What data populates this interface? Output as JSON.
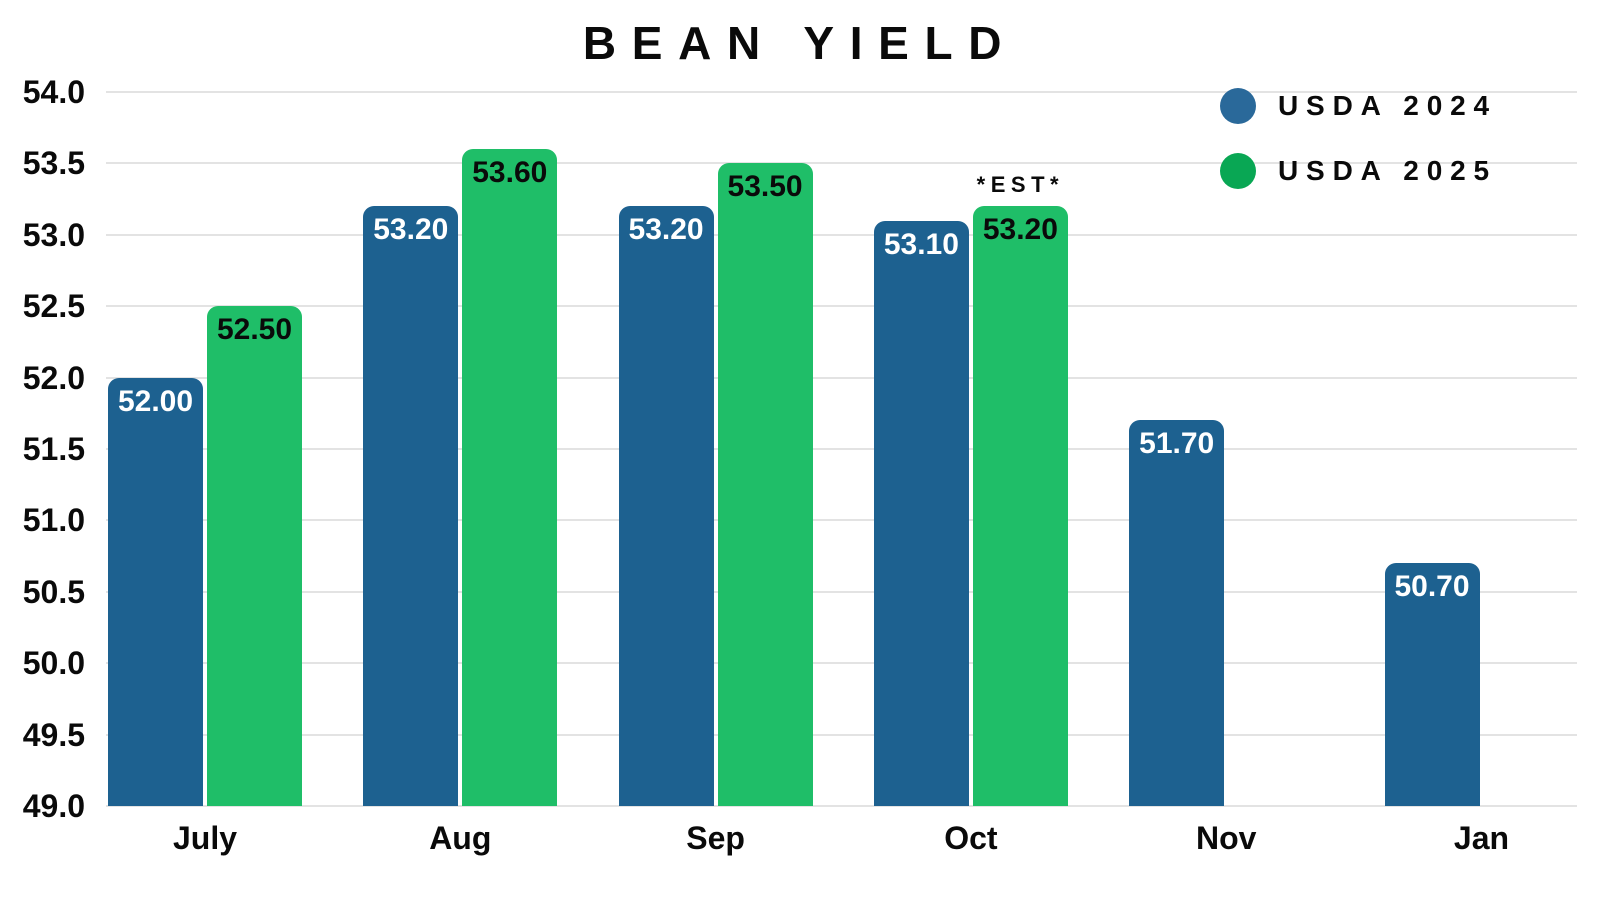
{
  "title": "BEAN YIELD",
  "legend": {
    "position": "top-right",
    "items": [
      {
        "label": "USDA 2024",
        "marker_color": "#2a699a"
      },
      {
        "label": "USDA 2025",
        "marker_color": "#09a754"
      }
    ]
  },
  "colors": {
    "bar_blue": "#1d6190",
    "bar_green": "#1fbe68",
    "gridline": "#e3e3e3",
    "text": "#0a0a0a",
    "background": "#ffffff"
  },
  "chart_data": {
    "type": "bar",
    "title": "BEAN YIELD",
    "categories": [
      "July",
      "Aug",
      "Sep",
      "Oct",
      "Nov",
      "Jan"
    ],
    "series": [
      {
        "name": "USDA 2024",
        "color": "#1d6190",
        "label_color": "#ffffff",
        "values": [
          52.0,
          53.2,
          53.2,
          53.1,
          51.7,
          50.7
        ]
      },
      {
        "name": "USDA 2025",
        "color": "#1fbe68",
        "label_color": "#0a0a0a",
        "values": [
          52.5,
          53.6,
          53.5,
          53.2,
          null,
          null
        ]
      }
    ],
    "value_label_decimals": 2,
    "annotation": {
      "text": "*EST*",
      "category_index": 3,
      "series_index": 1
    },
    "ylim": [
      49.0,
      54.0
    ],
    "ytick_step": 0.5,
    "ytick_labels": [
      "54.0",
      "53.5",
      "53.0",
      "52.5",
      "52.0",
      "51.5",
      "51.0",
      "50.5",
      "50.0",
      "49.5",
      "49.0"
    ],
    "xlabel": "",
    "ylabel": "",
    "grid": true,
    "legend_position": "top-right"
  }
}
